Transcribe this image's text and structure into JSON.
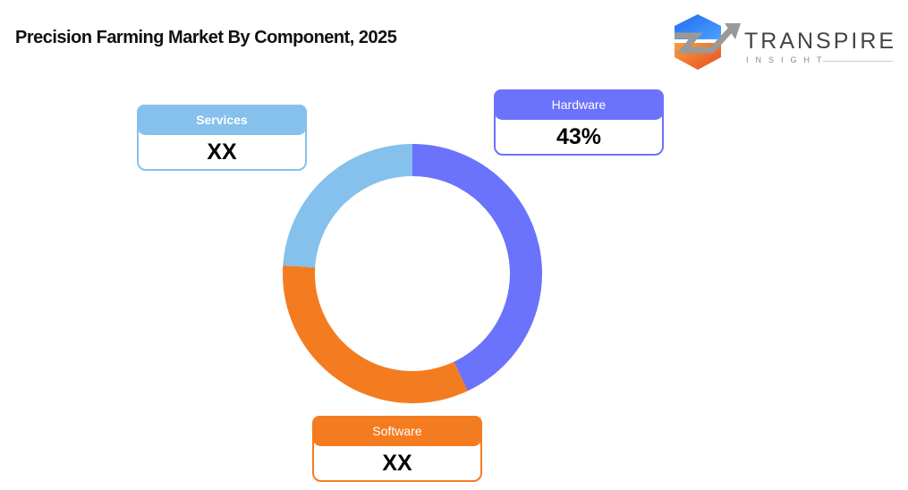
{
  "title": "Precision Farming Market By Component, 2025",
  "logo": {
    "word": "TRANSPIRE",
    "sub": "INSIGHT"
  },
  "chart_data": {
    "type": "pie",
    "variant": "donut",
    "title": "Precision Farming Market By Component, 2025",
    "categories": [
      "Hardware",
      "Software",
      "Services"
    ],
    "values": [
      43,
      33,
      24
    ],
    "value_labels": [
      "43%",
      "XX",
      "XX"
    ],
    "colors": [
      "#6b72fb",
      "#f47c20",
      "#85c1ec"
    ]
  }
}
